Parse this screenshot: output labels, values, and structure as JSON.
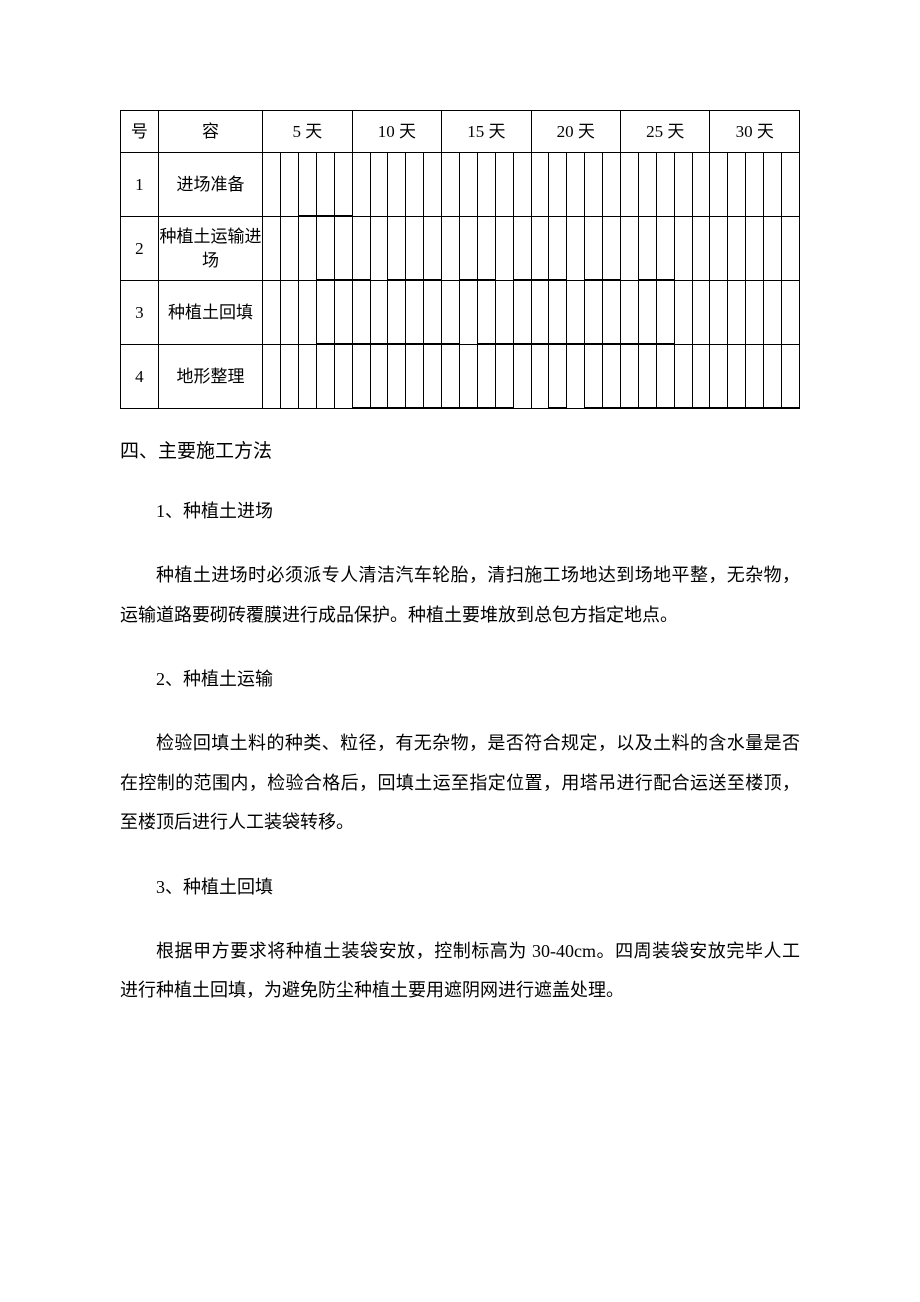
{
  "gantt": {
    "header": {
      "num": "号",
      "name": "容"
    },
    "day_labels": [
      "5 天",
      "10 天",
      "15 天",
      "20 天",
      "25 天",
      "30 天"
    ],
    "sub_per_group": 5,
    "rows": [
      {
        "num": "1",
        "name": "进场准备",
        "bars": [
          {
            "start": 2,
            "len": 3
          }
        ]
      },
      {
        "num": "2",
        "name": "种植土运输进场",
        "bars": [
          {
            "start": 3,
            "len": 3
          },
          {
            "start": 7,
            "len": 3
          },
          {
            "start": 11,
            "len": 2
          },
          {
            "start": 14,
            "len": 3
          },
          {
            "start": 18,
            "len": 2
          },
          {
            "start": 21,
            "len": 2
          }
        ]
      },
      {
        "num": "3",
        "name": "种植土回填",
        "bars": [
          {
            "start": 3,
            "len": 8
          },
          {
            "start": 12,
            "len": 11
          }
        ]
      },
      {
        "num": "4",
        "name": "地形整理",
        "bars": [
          {
            "start": 5,
            "len": 9
          },
          {
            "start": 16,
            "len": 1
          },
          {
            "start": 18,
            "len": 12
          }
        ]
      }
    ]
  },
  "section_title": "四、主要施工方法",
  "blocks": [
    {
      "type": "sub",
      "text": "1、种植土进场"
    },
    {
      "type": "para",
      "text": "种植土进场时必须派专人清洁汽车轮胎，清扫施工场地达到场地平整，无杂物，运输道路要砌砖覆膜进行成品保护。种植土要堆放到总包方指定地点。"
    },
    {
      "type": "sub",
      "text": "2、种植土运输"
    },
    {
      "type": "para",
      "text": "检验回填土料的种类、粒径，有无杂物，是否符合规定，以及土料的含水量是否在控制的范围内，检验合格后，回填土运至指定位置，用塔吊进行配合运送至楼顶，至楼顶后进行人工装袋转移。"
    },
    {
      "type": "sub",
      "text": "3、种植土回填"
    },
    {
      "type": "para",
      "text": "根据甲方要求将种植土装袋安放，控制标高为 30-40cm。四周装袋安放完毕人工进行种植土回填，为避免防尘种植土要用遮阴网进行遮盖处理。"
    }
  ]
}
